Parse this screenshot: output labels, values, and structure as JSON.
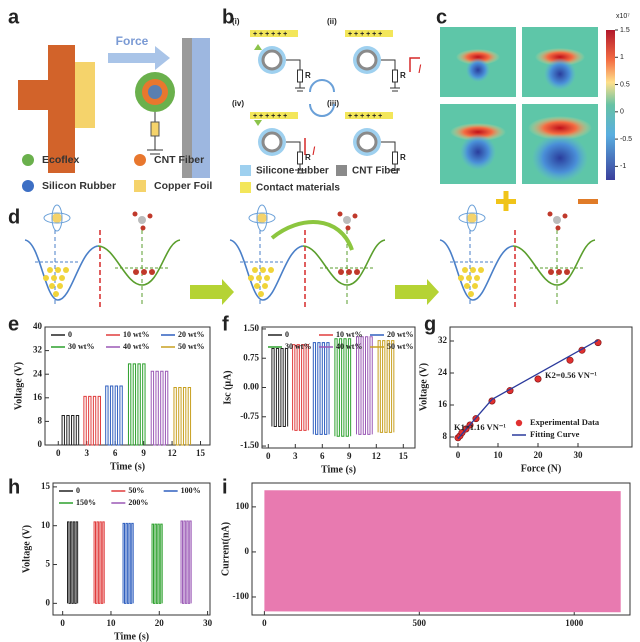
{
  "panel_labels": [
    "a",
    "b",
    "c",
    "d",
    "e",
    "f",
    "g",
    "h",
    "i"
  ],
  "panel_a": {
    "arrow_label": "Force",
    "legend": [
      "Ecoflex",
      "CNT Fiber",
      "Silicon Rubber",
      "Copper Foil"
    ]
  },
  "panel_b": {
    "states": [
      "(i)",
      "(ii)",
      "(iii)",
      "(iv)"
    ],
    "charges": "+ + + + + +",
    "resistor": "R",
    "current": "I",
    "legend": [
      "Silicone rubber",
      "CNT Fiber",
      "Contact materials"
    ]
  },
  "panel_c": {
    "colorbar_ticks": [
      1.5,
      1,
      0.5,
      0,
      -0.5,
      -1
    ],
    "colorbar_exponent": "x10⁷"
  },
  "chart_data": [
    {
      "type": "line",
      "xlabel": "Time (s)",
      "ylabel": "Voltage (V)",
      "xlim": [
        -1.4,
        16
      ],
      "ylim": [
        0,
        40
      ],
      "xticks": [
        0,
        3,
        6,
        9,
        12,
        15
      ],
      "yticks": [
        0,
        8,
        16,
        24,
        32,
        40
      ],
      "legend": "top",
      "series": [
        {
          "name": "0",
          "color": "#222222",
          "x": [
            0.4,
            0.4,
            0.65,
            0.65,
            0.9,
            0.9,
            1.15,
            1.15,
            1.4,
            1.4,
            1.65,
            1.65,
            1.9,
            1.9,
            2.15,
            2.15
          ],
          "values": [
            0,
            10,
            10,
            0,
            0,
            10,
            10,
            0,
            0,
            10,
            10,
            0,
            0,
            10,
            10,
            0
          ]
        },
        {
          "name": "10 wt%",
          "color": "#e03c3c",
          "x": [
            2.7,
            2.7,
            2.95,
            2.95,
            3.2,
            3.2,
            3.45,
            3.45,
            3.7,
            3.7,
            3.95,
            3.95,
            4.2,
            4.2,
            4.45,
            4.45
          ],
          "values": [
            0,
            16.5,
            16.5,
            0,
            0,
            16.5,
            16.5,
            0,
            0,
            16.5,
            16.5,
            0,
            0,
            16.5,
            16.5,
            0
          ]
        },
        {
          "name": "20 wt%",
          "color": "#2f5fbf",
          "x": [
            5.0,
            5.0,
            5.25,
            5.25,
            5.5,
            5.5,
            5.75,
            5.75,
            6.0,
            6.0,
            6.25,
            6.25,
            6.5,
            6.5,
            6.75,
            6.75
          ],
          "values": [
            0,
            20,
            20,
            0,
            0,
            20,
            20,
            0,
            0,
            20,
            20,
            0,
            0,
            20,
            20,
            0
          ]
        },
        {
          "name": "30 wt%",
          "color": "#2ca02c",
          "x": [
            7.4,
            7.4,
            7.65,
            7.65,
            7.9,
            7.9,
            8.15,
            8.15,
            8.4,
            8.4,
            8.65,
            8.65,
            8.9,
            8.9,
            9.15,
            9.15
          ],
          "values": [
            0,
            27.5,
            27.5,
            0,
            0,
            27.5,
            27.5,
            0,
            0,
            27.5,
            27.5,
            0,
            0,
            27.5,
            27.5,
            0
          ]
        },
        {
          "name": "40 wt%",
          "color": "#9b59b6",
          "x": [
            9.8,
            9.8,
            10.05,
            10.05,
            10.3,
            10.3,
            10.55,
            10.55,
            10.8,
            10.8,
            11.05,
            11.05,
            11.3,
            11.3,
            11.55,
            11.55
          ],
          "values": [
            0,
            25,
            25,
            0,
            0,
            25,
            25,
            0,
            0,
            25,
            25,
            0,
            0,
            25,
            25,
            0
          ]
        },
        {
          "name": "50 wt%",
          "color": "#c8a020",
          "x": [
            12.2,
            12.2,
            12.45,
            12.45,
            12.7,
            12.7,
            12.95,
            12.95,
            13.2,
            13.2,
            13.45,
            13.45,
            13.7,
            13.7,
            13.95,
            13.95
          ],
          "values": [
            0,
            19.5,
            19.5,
            0,
            0,
            19.5,
            19.5,
            0,
            0,
            19.5,
            19.5,
            0,
            0,
            19.5,
            19.5,
            0
          ]
        }
      ]
    },
    {
      "type": "line",
      "xlabel": "Time (s)",
      "ylabel": "Isc (μA)",
      "xlim": [
        -0.7,
        16.3
      ],
      "ylim": [
        -1.55,
        1.55
      ],
      "xticks": [
        0,
        3,
        6,
        9,
        12,
        15
      ],
      "yticks": [
        {
          "value": -1.5,
          "label": "-1.50"
        },
        -0.75,
        {
          "value": 0,
          "label": "0.00"
        },
        0.75,
        {
          "value": 1.5,
          "label": "1.50"
        }
      ],
      "legend": "top",
      "series": [
        {
          "name": "0",
          "color": "#222222",
          "x": [
            0.4,
            0.4,
            0.65,
            0.65,
            0.9,
            0.9,
            1.15,
            1.15,
            1.4,
            1.4,
            1.65,
            1.65,
            1.9,
            1.9,
            2.15,
            2.15
          ],
          "values": [
            -1,
            1,
            1,
            -1,
            -1,
            1,
            1,
            -1,
            -1,
            1,
            1,
            -1,
            -1,
            1,
            1,
            -1
          ]
        },
        {
          "name": "10 wt%",
          "color": "#e03c3c",
          "x": [
            2.7,
            2.7,
            2.95,
            2.95,
            3.2,
            3.2,
            3.45,
            3.45,
            3.7,
            3.7,
            3.95,
            3.95,
            4.2,
            4.2,
            4.45,
            4.45
          ],
          "values": [
            -1.1,
            1.1,
            1.1,
            -1.1,
            -1.1,
            1.1,
            1.1,
            -1.1,
            -1.1,
            1.1,
            1.1,
            -1.1,
            -1.1,
            1.1,
            1.1,
            -1.1
          ]
        },
        {
          "name": "20 wt%",
          "color": "#2f5fbf",
          "x": [
            5.0,
            5.0,
            5.25,
            5.25,
            5.5,
            5.5,
            5.75,
            5.75,
            6.0,
            6.0,
            6.25,
            6.25,
            6.5,
            6.5,
            6.75,
            6.75
          ],
          "values": [
            -1.2,
            1.15,
            1.15,
            -1.2,
            -1.2,
            1.15,
            1.15,
            -1.2,
            -1.2,
            1.15,
            1.15,
            -1.2,
            -1.2,
            1.15,
            1.15,
            -1.2
          ]
        },
        {
          "name": "30 wt%",
          "color": "#2ca02c",
          "x": [
            7.4,
            7.4,
            7.65,
            7.65,
            7.9,
            7.9,
            8.15,
            8.15,
            8.4,
            8.4,
            8.65,
            8.65,
            8.9,
            8.9,
            9.15,
            9.15
          ],
          "values": [
            -1.25,
            1.25,
            1.25,
            -1.25,
            -1.25,
            1.25,
            1.25,
            -1.25,
            -1.25,
            1.25,
            1.25,
            -1.25,
            -1.25,
            1.25,
            1.25,
            -1.25
          ]
        },
        {
          "name": "40 wt%",
          "color": "#9b59b6",
          "x": [
            9.8,
            9.8,
            10.05,
            10.05,
            10.3,
            10.3,
            10.55,
            10.55,
            10.8,
            10.8,
            11.05,
            11.05,
            11.3,
            11.3,
            11.55,
            11.55
          ],
          "values": [
            -1.2,
            1.3,
            1.3,
            -1.2,
            -1.2,
            1.3,
            1.3,
            -1.2,
            -1.2,
            1.3,
            1.3,
            -1.2,
            -1.2,
            1.3,
            1.3,
            -1.2
          ]
        },
        {
          "name": "50 wt%",
          "color": "#c8a020",
          "x": [
            12.2,
            12.2,
            12.45,
            12.45,
            12.7,
            12.7,
            12.95,
            12.95,
            13.2,
            13.2,
            13.45,
            13.45,
            13.7,
            13.7,
            13.95,
            13.95
          ],
          "values": [
            -1.15,
            1.2,
            1.2,
            -1.15,
            -1.15,
            1.2,
            1.2,
            -1.15,
            -1.15,
            1.2,
            1.2,
            -1.15,
            -1.15,
            1.2,
            1.2,
            -1.15
          ]
        }
      ]
    },
    {
      "type": "scatter",
      "xlabel": "Force (N)",
      "ylabel": "Voltage (V)",
      "xlim": [
        -2,
        43.5
      ],
      "ylim": [
        5.5,
        35.5
      ],
      "xticks": [
        0,
        10,
        20,
        30
      ],
      "yticks": [
        8,
        16,
        24,
        32
      ],
      "legend": "lower right",
      "annotations": [
        "K2=0.56 VN⁻¹",
        "K1=1.16 VN⁻¹"
      ],
      "series": [
        {
          "name": "Experimental Data",
          "color": "#e03030",
          "kind": "scatter",
          "x": [
            0,
            0.5,
            1,
            2,
            3,
            4.5,
            8.5,
            13,
            20,
            28,
            31,
            35
          ],
          "values": [
            7.8,
            8.3,
            9.1,
            10.0,
            11.0,
            12.6,
            17.0,
            19.6,
            22.5,
            27.2,
            29.7,
            31.6
          ]
        },
        {
          "name": "Fitting Curve",
          "color": "#2b3a9c",
          "kind": "line",
          "x": [
            0,
            8.5,
            35
          ],
          "values": [
            7.6,
            17.4,
            32.2
          ]
        }
      ]
    },
    {
      "type": "line",
      "xlabel": "Time (s)",
      "ylabel": "Voltage (V)",
      "xlim": [
        -2,
        30.5
      ],
      "ylim": [
        -1.5,
        15.5
      ],
      "xticks": [
        0,
        10,
        20,
        30
      ],
      "yticks": [
        0,
        5,
        10,
        15
      ],
      "legend": "top",
      "series": [
        {
          "name": "0",
          "color": "#222222",
          "x": [
            1.0,
            1.0,
            1.3,
            1.3,
            1.6,
            1.6,
            1.9,
            1.9,
            2.2,
            2.2,
            2.5,
            2.5,
            2.8,
            2.8,
            3.1,
            3.1
          ],
          "values": [
            0,
            10.5,
            10.5,
            0,
            0,
            10.5,
            10.5,
            0,
            0,
            10.5,
            10.5,
            0,
            0,
            10.5,
            10.5,
            0
          ]
        },
        {
          "name": "50%",
          "color": "#e03c3c",
          "x": [
            6.5,
            6.5,
            6.8,
            6.8,
            7.1,
            7.1,
            7.4,
            7.4,
            7.7,
            7.7,
            8.0,
            8.0,
            8.3,
            8.3,
            8.6,
            8.6
          ],
          "values": [
            0,
            10.5,
            10.5,
            0,
            0,
            10.5,
            10.5,
            0,
            0,
            10.5,
            10.5,
            0,
            0,
            10.5,
            10.5,
            0
          ]
        },
        {
          "name": "100%",
          "color": "#2f5fbf",
          "x": [
            12.5,
            12.5,
            12.8,
            12.8,
            13.1,
            13.1,
            13.4,
            13.4,
            13.7,
            13.7,
            14.0,
            14.0,
            14.3,
            14.3,
            14.6,
            14.6
          ],
          "values": [
            0,
            10.3,
            10.3,
            0,
            0,
            10.3,
            10.3,
            0,
            0,
            10.3,
            10.3,
            0,
            0,
            10.3,
            10.3,
            0
          ]
        },
        {
          "name": "150%",
          "color": "#2ca02c",
          "x": [
            18.5,
            18.5,
            18.8,
            18.8,
            19.1,
            19.1,
            19.4,
            19.4,
            19.7,
            19.7,
            20.0,
            20.0,
            20.3,
            20.3,
            20.6,
            20.6
          ],
          "values": [
            0,
            10.2,
            10.2,
            0,
            0,
            10.2,
            10.2,
            0,
            0,
            10.2,
            10.2,
            0,
            0,
            10.2,
            10.2,
            0
          ]
        },
        {
          "name": "200%",
          "color": "#9b59b6",
          "x": [
            24.5,
            24.5,
            24.8,
            24.8,
            25.1,
            25.1,
            25.4,
            25.4,
            25.7,
            25.7,
            26.0,
            26.0,
            26.3,
            26.3,
            26.6,
            26.6
          ],
          "values": [
            0,
            10.6,
            10.6,
            0,
            0,
            10.6,
            10.6,
            0,
            0,
            10.6,
            10.6,
            0,
            0,
            10.6,
            10.6,
            0
          ]
        }
      ]
    },
    {
      "type": "band",
      "ylabel": "Current(nA)",
      "xlim": [
        -40,
        1180
      ],
      "ylim": [
        -140,
        153
      ],
      "xticks": [
        0,
        500,
        1000
      ],
      "yticks": [
        -100,
        0,
        100
      ],
      "series": [
        {
          "color": "#e87ab0",
          "x": [
            0,
            1150
          ],
          "values": [
            137,
            135
          ],
          "lower": [
            -132,
            -134
          ]
        }
      ]
    }
  ]
}
